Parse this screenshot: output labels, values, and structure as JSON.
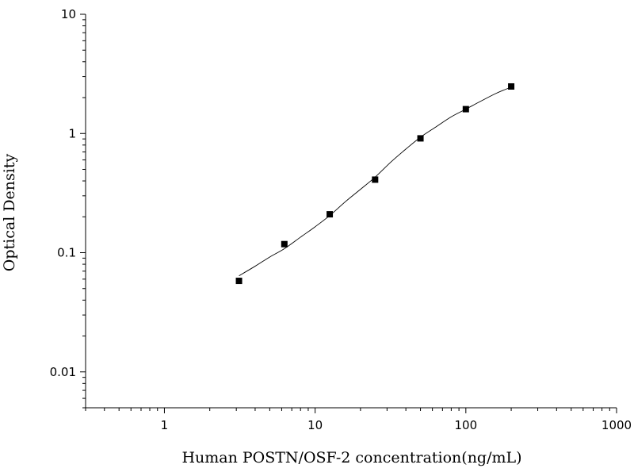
{
  "chart_data": {
    "type": "scatter",
    "title": "",
    "xlabel": "Human POSTN/OSF-2 concentration(ng/mL)",
    "ylabel": "Optical Density",
    "x_scale": "log",
    "y_scale": "log",
    "xlim": [
      0.3,
      1000
    ],
    "ylim": [
      0.005,
      10
    ],
    "x_ticks": [
      1,
      10,
      100,
      1000
    ],
    "x_tick_labels": [
      "1",
      "10",
      "100",
      "1000"
    ],
    "y_ticks": [
      0.01,
      0.1,
      1,
      10
    ],
    "y_tick_labels": [
      "0.01",
      "0.1",
      "1",
      "10"
    ],
    "grid": false,
    "legend": "none",
    "marker": "square",
    "series": [
      {
        "x": [
          3.125,
          6.25,
          12.5,
          25,
          50,
          100,
          200
        ],
        "y": [
          0.058,
          0.118,
          0.21,
          0.41,
          0.91,
          1.6,
          2.48
        ]
      }
    ],
    "fit_curve": {
      "type": "smooth",
      "x": [
        3.125,
        4,
        5,
        6.25,
        8,
        10,
        12.5,
        16,
        20,
        25,
        32,
        40,
        50,
        63,
        80,
        100,
        125,
        160,
        200
      ],
      "y": [
        0.064,
        0.077,
        0.092,
        0.108,
        0.135,
        0.165,
        0.205,
        0.27,
        0.34,
        0.43,
        0.58,
        0.74,
        0.93,
        1.13,
        1.38,
        1.6,
        1.86,
        2.18,
        2.45
      ]
    },
    "colors": {
      "marker": "#000000",
      "line": "#000000",
      "axis": "#000000"
    }
  }
}
